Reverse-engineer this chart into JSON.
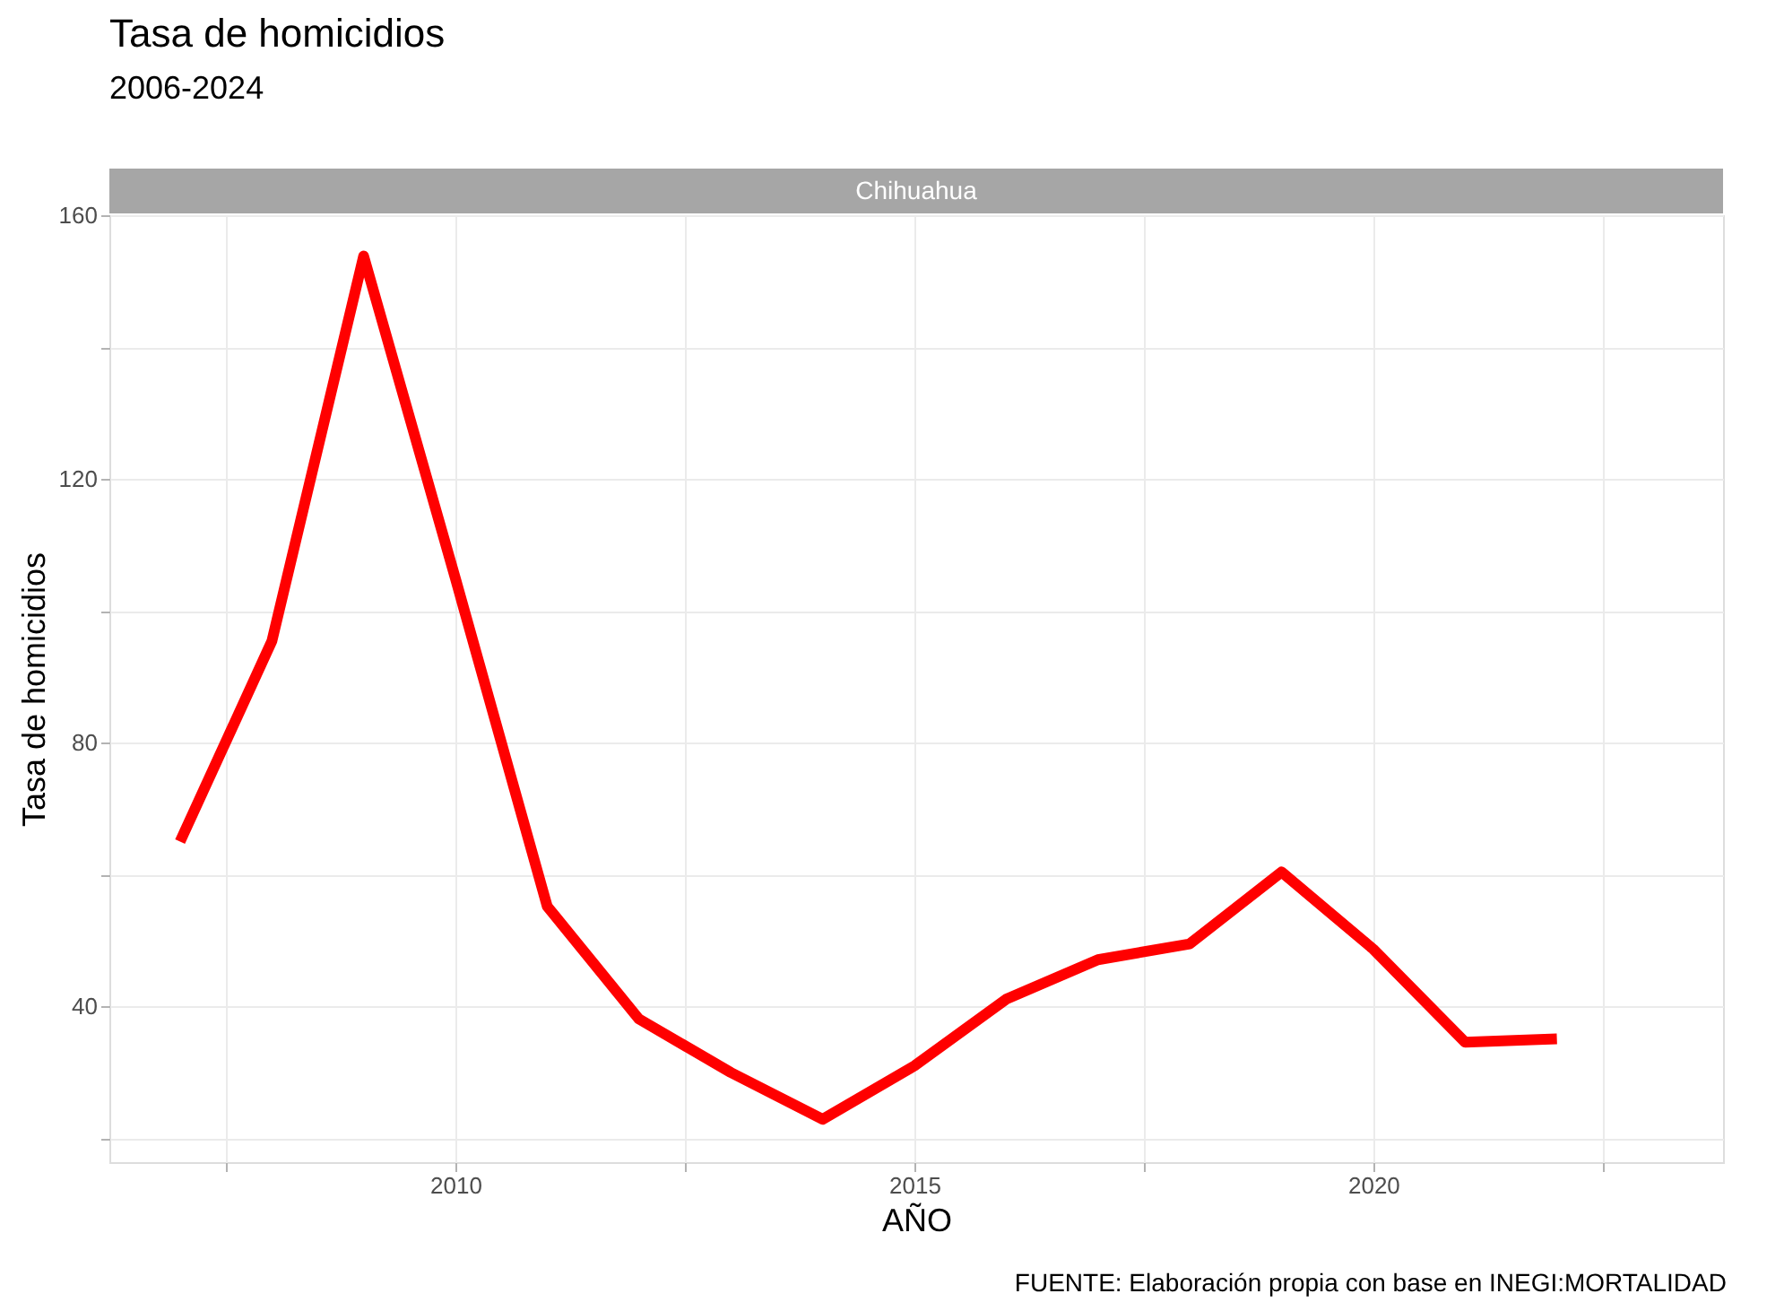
{
  "chart_data": {
    "type": "line",
    "title": "Tasa de homicidios",
    "subtitle": "2006-2024",
    "xlabel": "AÑO",
    "ylabel": "Tasa de homicidios",
    "annotations": [
      "Chihuahua",
      "FUENTE: Elaboración propia con base en INEGI:MORTALIDAD"
    ],
    "x": [
      2007,
      2008,
      2009,
      2010,
      2011,
      2012,
      2013,
      2014,
      2015,
      2016,
      2017,
      2018,
      2019,
      2020,
      2021,
      2022
    ],
    "series": [
      {
        "color": "#ff0000",
        "values": [
          65.0,
          95.4,
          153.8,
          104.9,
          55.2,
          38.1,
          30.0,
          22.9,
          31.0,
          41.1,
          47.1,
          49.5,
          60.4,
          48.7,
          34.6,
          35.1
        ]
      }
    ],
    "xlim": [
      2006.23,
      2023.81
    ],
    "ylim": [
      16.4,
      160
    ],
    "xticks": [
      {
        "value": 2007.5,
        "label": null
      },
      2010,
      {
        "value": 2012.5,
        "label": null
      },
      2015,
      {
        "value": 2017.5,
        "label": null
      },
      2020,
      {
        "value": 2022.5,
        "label": null
      }
    ],
    "yticks": [
      {
        "value": 20,
        "label": null
      },
      40,
      {
        "value": 60,
        "label": null
      },
      80,
      {
        "value": 100,
        "label": null
      },
      120,
      {
        "value": 140,
        "label": null
      },
      160
    ],
    "grid": true,
    "marker": "none",
    "line_style": "solid"
  }
}
